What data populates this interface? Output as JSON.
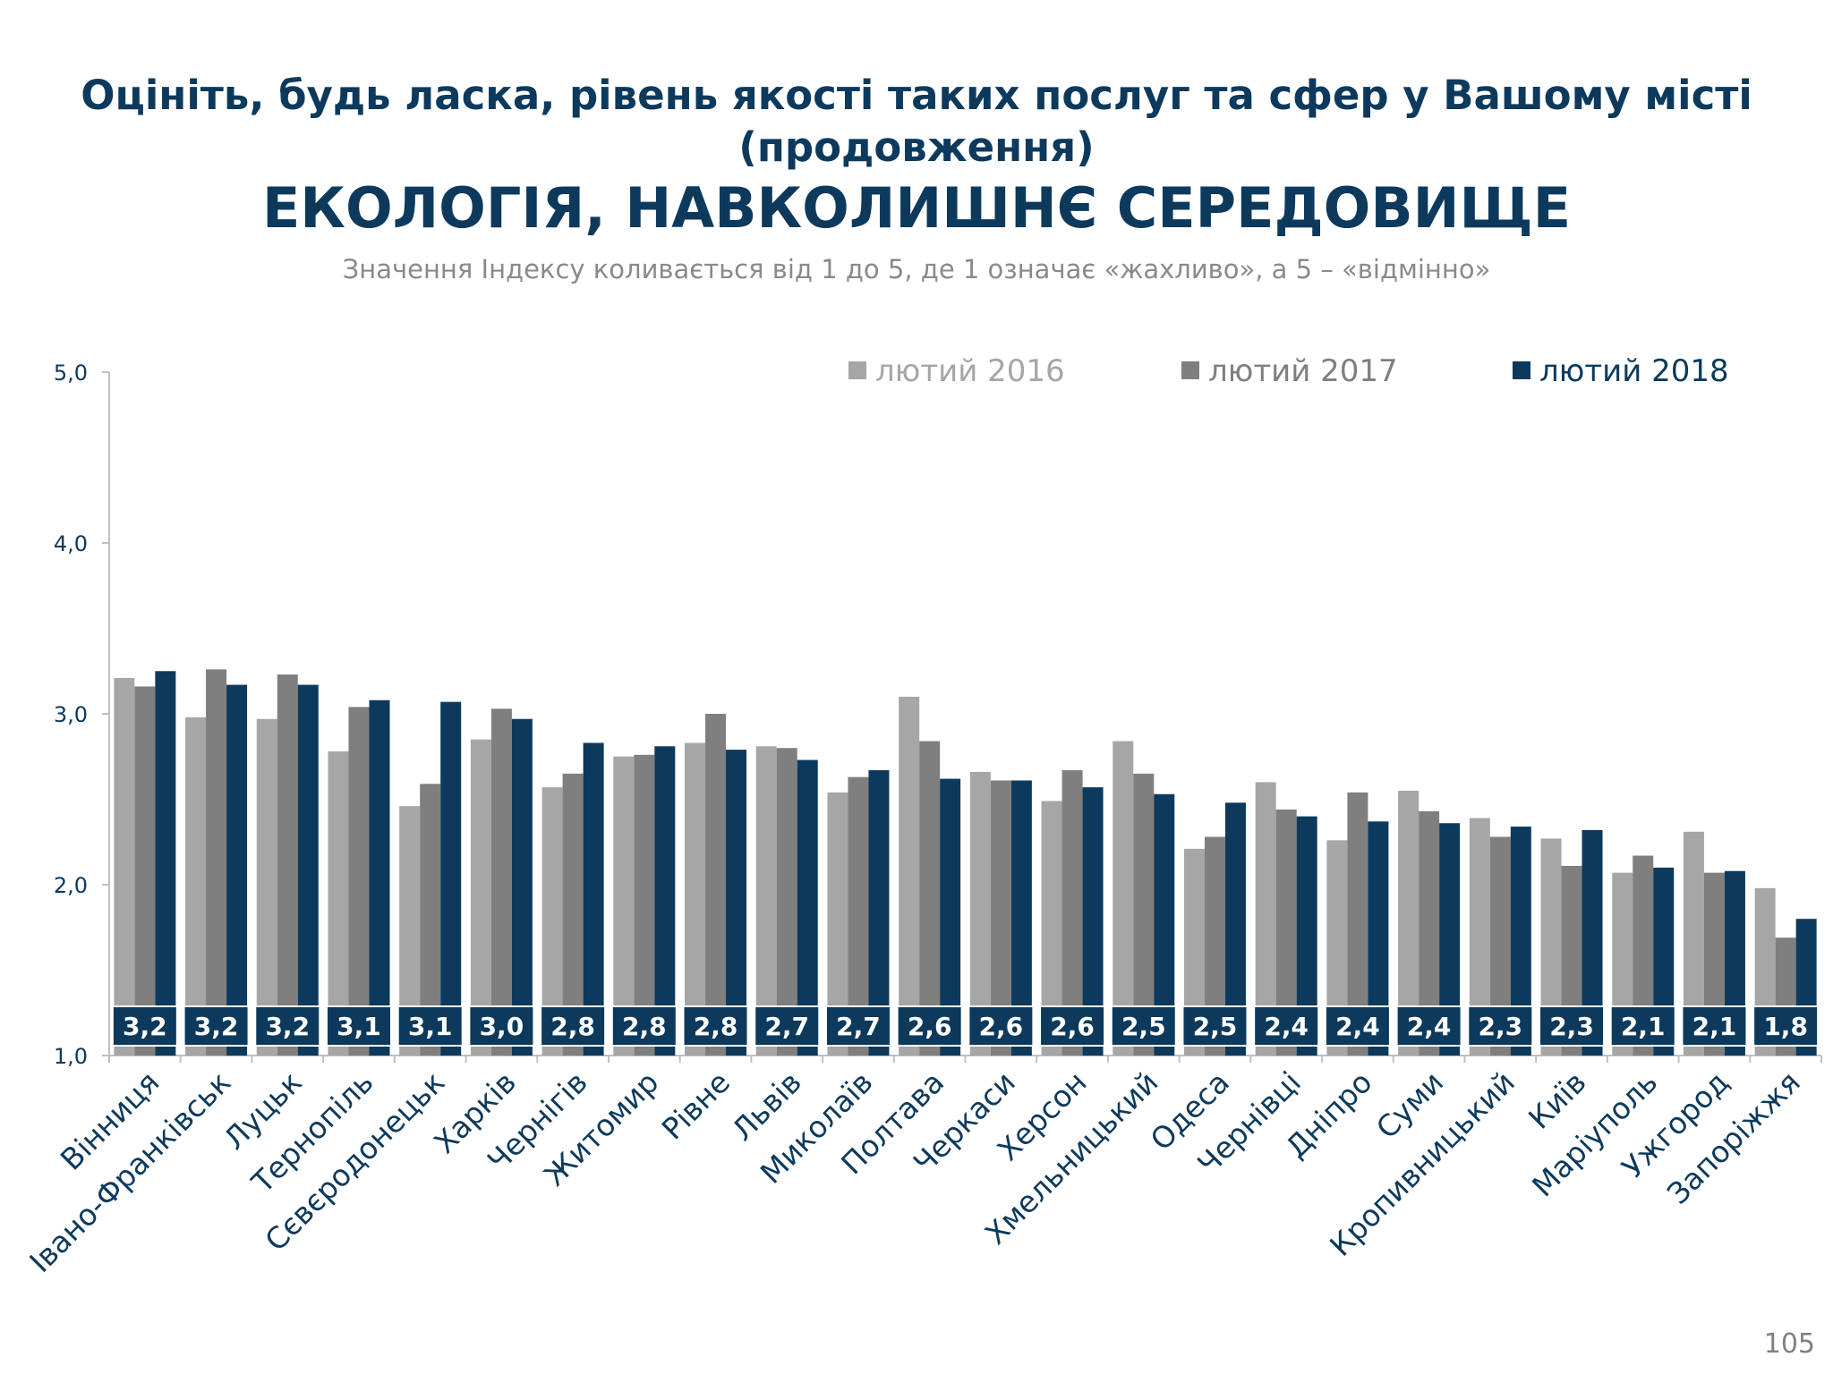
{
  "header": {
    "title_line1": "Оцініть, будь ласка, рівень якості таких послуг та сфер у Вашому місті",
    "title_line2": "(продовження)",
    "title_line3": "ЕКОЛОГІЯ, НАВКОЛИШНЄ СЕРЕДОВИЩЕ",
    "subtitle": "Значення Індексу коливається від 1 до 5, де 1 означає «жахливо», а 5 – «відмінно»"
  },
  "footer": {
    "page_number": "105"
  },
  "colors": {
    "series_2016": "#a6a6a6",
    "series_2017": "#7f7f7f",
    "series_2018": "#0d3a5c",
    "axis": "#bfbfbf",
    "text_dark": "#0d3a5c",
    "label_text": "#ffffff"
  },
  "chart_data": {
    "type": "bar",
    "title": "ЕКОЛОГІЯ, НАВКОЛИШНЄ СЕРЕДОВИЩЕ",
    "xlabel": "",
    "ylabel": "",
    "ylim": [
      1.0,
      5.0
    ],
    "yticks": [
      "1,0",
      "2,0",
      "3,0",
      "4,0",
      "5,0"
    ],
    "grid": false,
    "legend_position": "top-right",
    "categories": [
      "Вінниця",
      "Івано-Франківськ",
      "Луцьк",
      "Тернопіль",
      "Сєвєродонецьк",
      "Харків",
      "Чернігів",
      "Житомир",
      "Рівне",
      "Львів",
      "Миколаїв",
      "Полтава",
      "Черкаси",
      "Херсон",
      "Хмельницький",
      "Одеса",
      "Чернівці",
      "Дніпро",
      "Суми",
      "Кропивницький",
      "Київ",
      "Маріуполь",
      "Ужгород",
      "Запоріжжя"
    ],
    "series": [
      {
        "name": "лютий 2016",
        "values": [
          3.21,
          2.98,
          2.97,
          2.78,
          2.46,
          2.85,
          2.57,
          2.75,
          2.83,
          2.81,
          2.54,
          3.1,
          2.66,
          2.49,
          2.84,
          2.21,
          2.6,
          2.26,
          2.55,
          2.39,
          2.27,
          2.07,
          2.31,
          1.98
        ]
      },
      {
        "name": "лютий 2017",
        "values": [
          3.16,
          3.26,
          3.23,
          3.04,
          2.59,
          3.03,
          2.65,
          2.76,
          3.0,
          2.8,
          2.63,
          2.84,
          2.61,
          2.67,
          2.65,
          2.28,
          2.44,
          2.54,
          2.43,
          2.28,
          2.11,
          2.17,
          2.07,
          1.69
        ]
      },
      {
        "name": "лютий 2018",
        "values": [
          3.25,
          3.17,
          3.17,
          3.08,
          3.07,
          2.97,
          2.83,
          2.81,
          2.79,
          2.73,
          2.67,
          2.62,
          2.61,
          2.57,
          2.53,
          2.48,
          2.4,
          2.37,
          2.36,
          2.34,
          2.32,
          2.1,
          2.08,
          1.8
        ]
      }
    ],
    "data_labels": [
      "3,2",
      "3,2",
      "3,2",
      "3,1",
      "3,1",
      "3,0",
      "2,8",
      "2,8",
      "2,8",
      "2,7",
      "2,7",
      "2,6",
      "2,6",
      "2,6",
      "2,5",
      "2,5",
      "2,4",
      "2,4",
      "2,4",
      "2,3",
      "2,3",
      "2,1",
      "2,1",
      "1,8"
    ]
  }
}
